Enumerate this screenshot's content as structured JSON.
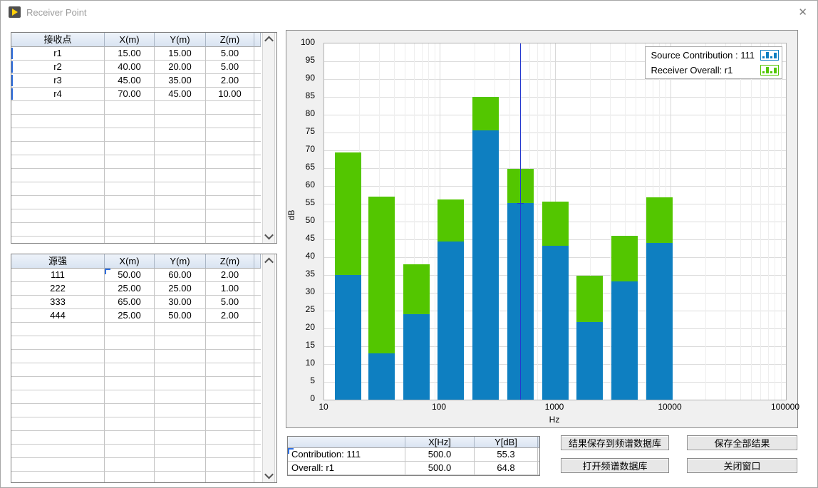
{
  "window": {
    "title": "Receiver Point",
    "close_glyph": "✕"
  },
  "receiver_table": {
    "headers": [
      "接收点",
      "X(m)",
      "Y(m)",
      "Z(m)"
    ],
    "rows": [
      [
        "r1",
        "15.00",
        "15.00",
        "5.00"
      ],
      [
        "r2",
        "40.00",
        "20.00",
        "5.00"
      ],
      [
        "r3",
        "45.00",
        "35.00",
        "2.00"
      ],
      [
        "r4",
        "70.00",
        "45.00",
        "10.00"
      ]
    ]
  },
  "source_table": {
    "headers": [
      "源强",
      "X(m)",
      "Y(m)",
      "Z(m)"
    ],
    "rows": [
      [
        "111",
        "50.00",
        "60.00",
        "2.00"
      ],
      [
        "222",
        "25.00",
        "25.00",
        "1.00"
      ],
      [
        "333",
        "65.00",
        "30.00",
        "5.00"
      ],
      [
        "444",
        "25.00",
        "50.00",
        "2.00"
      ]
    ]
  },
  "chart_data": {
    "type": "bar",
    "stacked": true,
    "x_scale": "log",
    "categories": [
      16,
      31.5,
      63,
      125,
      250,
      500,
      1000,
      2000,
      4000,
      8000
    ],
    "series": [
      {
        "name": "Source Contribution : 111",
        "color": "#0e7fc1",
        "values": [
          35.0,
          13.0,
          24.0,
          44.4,
          75.7,
          55.3,
          43.2,
          21.9,
          33.2,
          44.1
        ]
      },
      {
        "name": "Receiver Overall: r1",
        "color": "#53c600",
        "values": [
          69.4,
          57.0,
          38.0,
          56.2,
          85.0,
          64.8,
          55.6,
          34.9,
          46.0,
          56.9
        ]
      }
    ],
    "title": "",
    "xlabel": "Hz",
    "ylabel": "dB",
    "xlim": [
      10,
      100000
    ],
    "ylim": [
      0,
      100
    ],
    "y_tick_step": 5,
    "x_ticks": [
      "10",
      "100",
      "1000",
      "10000",
      "100000"
    ],
    "grid": true,
    "legend_position": "top-right",
    "cursor": {
      "x_hz": 500,
      "y_db": 55.3
    }
  },
  "cursor_table": {
    "headers": [
      "",
      "X[Hz]",
      "Y[dB]"
    ],
    "rows": [
      [
        "Contribution: 111",
        "500.0",
        "55.3"
      ],
      [
        "Overall: r1",
        "500.0",
        "64.8"
      ]
    ]
  },
  "buttons": {
    "save_to_db": "结果保存到频谱数据库",
    "save_all": "保存全部结果",
    "open_db": "打开频谱数据库",
    "close_window": "关闭窗口"
  }
}
